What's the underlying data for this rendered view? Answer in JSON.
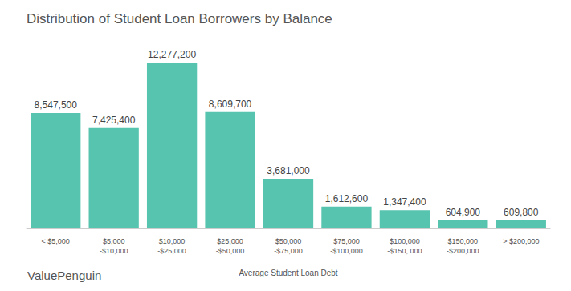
{
  "chart_data": {
    "type": "bar",
    "title": "Distribution of Student Loan Borrowers by Balance",
    "x_label": "Average Student Loan Debt",
    "annotations": [
      "ValuePenguin"
    ],
    "categories": [
      "< $5,000",
      "$5,000\n-$10,000",
      "$10,000\n-$25,000",
      "$25,000\n-$50,000",
      "$50,000\n-$75,000",
      "$75,000\n-$100,000",
      "$100,000\n-$150, 000",
      "$150,000\n-$200,000",
      "> $200,000"
    ],
    "values": [
      8547500,
      7425400,
      12277200,
      8609700,
      3681000,
      1612600,
      1347400,
      604900,
      609800
    ],
    "value_labels": [
      "8,547,500",
      "7,425,400",
      "12,277,200",
      "8,609,700",
      "3,681,000",
      "1,612,600",
      "1,347,400",
      "604,900",
      "609,800"
    ],
    "color": "#56c4ae",
    "ylim": [
      0,
      14000000
    ],
    "grid": false,
    "data_labels": true,
    "tick_labels": "x"
  }
}
